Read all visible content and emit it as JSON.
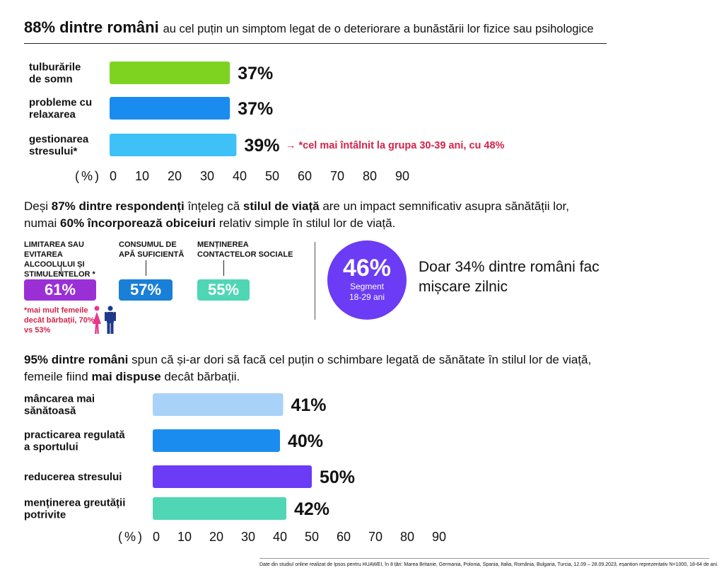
{
  "header": {
    "bold": "88% dintre români",
    "rest": "au cel puțin un simptom legat de o deteriorare a bunăstării lor fizice sau psihologice"
  },
  "chart_data": [
    {
      "type": "bar",
      "orientation": "horizontal",
      "categories": [
        "tulburările de somn",
        "probleme cu relaxarea",
        "gestionarea stresului*"
      ],
      "values": [
        37,
        37,
        39
      ],
      "value_labels": [
        "37%",
        "37%",
        "39%"
      ],
      "colors": [
        "#7ed321",
        "#1a8cf0",
        "#3ec1f7"
      ],
      "axis_unit": "(%)",
      "ticks": [
        "0",
        "10",
        "20",
        "30",
        "40",
        "50",
        "60",
        "70",
        "80",
        "90"
      ],
      "xlim": [
        0,
        90
      ],
      "annotation": "→ *cel mai întâlnit la grupa 30-39 ani, cu 48%"
    },
    {
      "type": "bar",
      "orientation": "horizontal",
      "categories": [
        "mâncarea mai sănătoasă",
        "practicarea regulată a sportului",
        "reducerea stresului",
        "menținerea greutății potrivite"
      ],
      "values": [
        41,
        40,
        50,
        42
      ],
      "value_labels": [
        "41%",
        "40%",
        "50%",
        "42%"
      ],
      "colors": [
        "#a8d2f7",
        "#1a8cf0",
        "#6b3bf5",
        "#4fd6b4"
      ],
      "axis_unit": "(%)",
      "ticks": [
        "0",
        "10",
        "20",
        "30",
        "40",
        "50",
        "60",
        "70",
        "80",
        "90"
      ],
      "xlim": [
        0,
        90
      ]
    }
  ],
  "para1": {
    "t1": "Deși ",
    "b1": "87% dintre respondenți",
    "t2": " înțeleg că ",
    "b2": "stilul de viață",
    "t3": " are un impact semnificativ asupra sănătății lor, numai ",
    "b3": "60% încorporează obiceiuri",
    "t4": " relativ simple în stilul lor de viață."
  },
  "habits": [
    {
      "label": "LIMITAREA SAU EVITAREA ALCOOLULUI ȘI STIMULENTELOR *",
      "value": "61%",
      "color": "#9b2fd6"
    },
    {
      "label": "CONSUMUL DE APĂ SUFICIENTĂ",
      "value": "57%",
      "color": "#1a7fd6"
    },
    {
      "label": "MENȚINEREA CONTACTELOR SOCIALE",
      "value": "55%",
      "color": "#4fd6b4"
    }
  ],
  "habit_note": "*mai mult femeile decât bărbații, 70% vs 53%",
  "colors": {
    "female_icon": "#e8378f",
    "male_icon": "#1f3a8a"
  },
  "circle": {
    "value": "46%",
    "line1": "Segment",
    "line2": "18-29 ani"
  },
  "side_text": "Doar 34% dintre români fac mișcare zilnic",
  "para2": {
    "b1": "95% dintre români",
    "t1": " spun că și-ar dori să facă cel puțin o schimbare legată de sănătate în stilul lor de viață, femeile fiind ",
    "b2": "mai dispuse",
    "t2": " decât bărbații."
  },
  "footnote": "Date din studiul online realizat de Ipsos pentru HUAWEI, în 8 țări: Marea Britanie, Germania, Polonia, Spania, Italia, România, Bulgaria, Turcia, 12.09 – 28.09.2023, eșantion reprezentativ N=1000, 18-64 de ani."
}
